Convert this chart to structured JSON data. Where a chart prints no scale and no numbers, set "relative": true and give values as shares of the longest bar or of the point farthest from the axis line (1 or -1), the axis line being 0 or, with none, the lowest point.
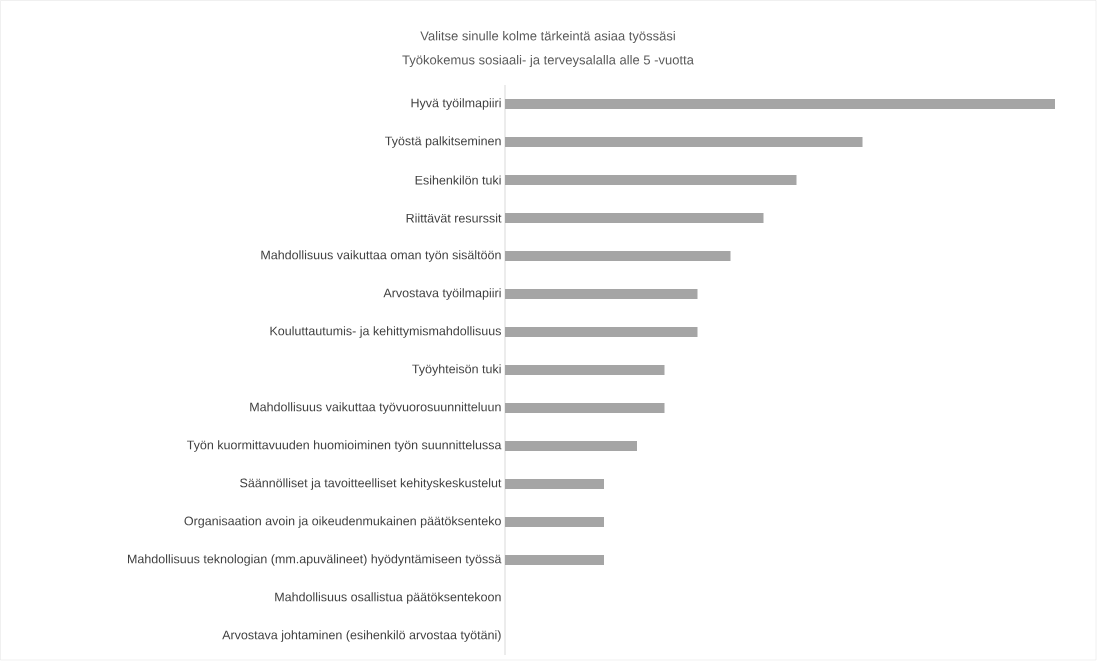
{
  "chart_data": {
    "type": "bar",
    "orientation": "horizontal",
    "relative": true,
    "title": "Valitse sinulle kolme tärkeintä asiaa työssäsi",
    "subtitle": "Työkokemus sosiaali- ja terveysalalla alle 5 -vuotta",
    "categories": [
      "Hyvä työilmapiiri",
      "Työstä palkitseminen",
      "Esihenkilön tuki",
      "Riittävät resurssit",
      "Mahdollisuus vaikuttaa oman työn sisältöön",
      "Arvostava työilmapiiri",
      "Kouluttautumis- ja kehittymismahdollisuus",
      "Työyhteisön tuki",
      "Mahdollisuus vaikuttaa työvuorosuunnitteluun",
      "Työn kuormittavuuden huomioiminen työn suunnittelussa",
      "Säännölliset ja tavoitteelliset kehityskeskustelut",
      "Organisaation avoin ja oikeudenmukainen päätöksenteko",
      "Mahdollisuus teknologian (mm.apuvälineet)  hyödyntämiseen työssä",
      "Mahdollisuus osallistua päätöksentekoon",
      "Arvostava johtaminen (esihenkilö arvostaa työtäni)"
    ],
    "values": [
      1,
      0.65,
      0.53,
      0.47,
      0.41,
      0.35,
      0.35,
      0.29,
      0.29,
      0.24,
      0.18,
      0.18,
      0.18,
      0,
      0
    ],
    "color": "#a5a5a5"
  }
}
